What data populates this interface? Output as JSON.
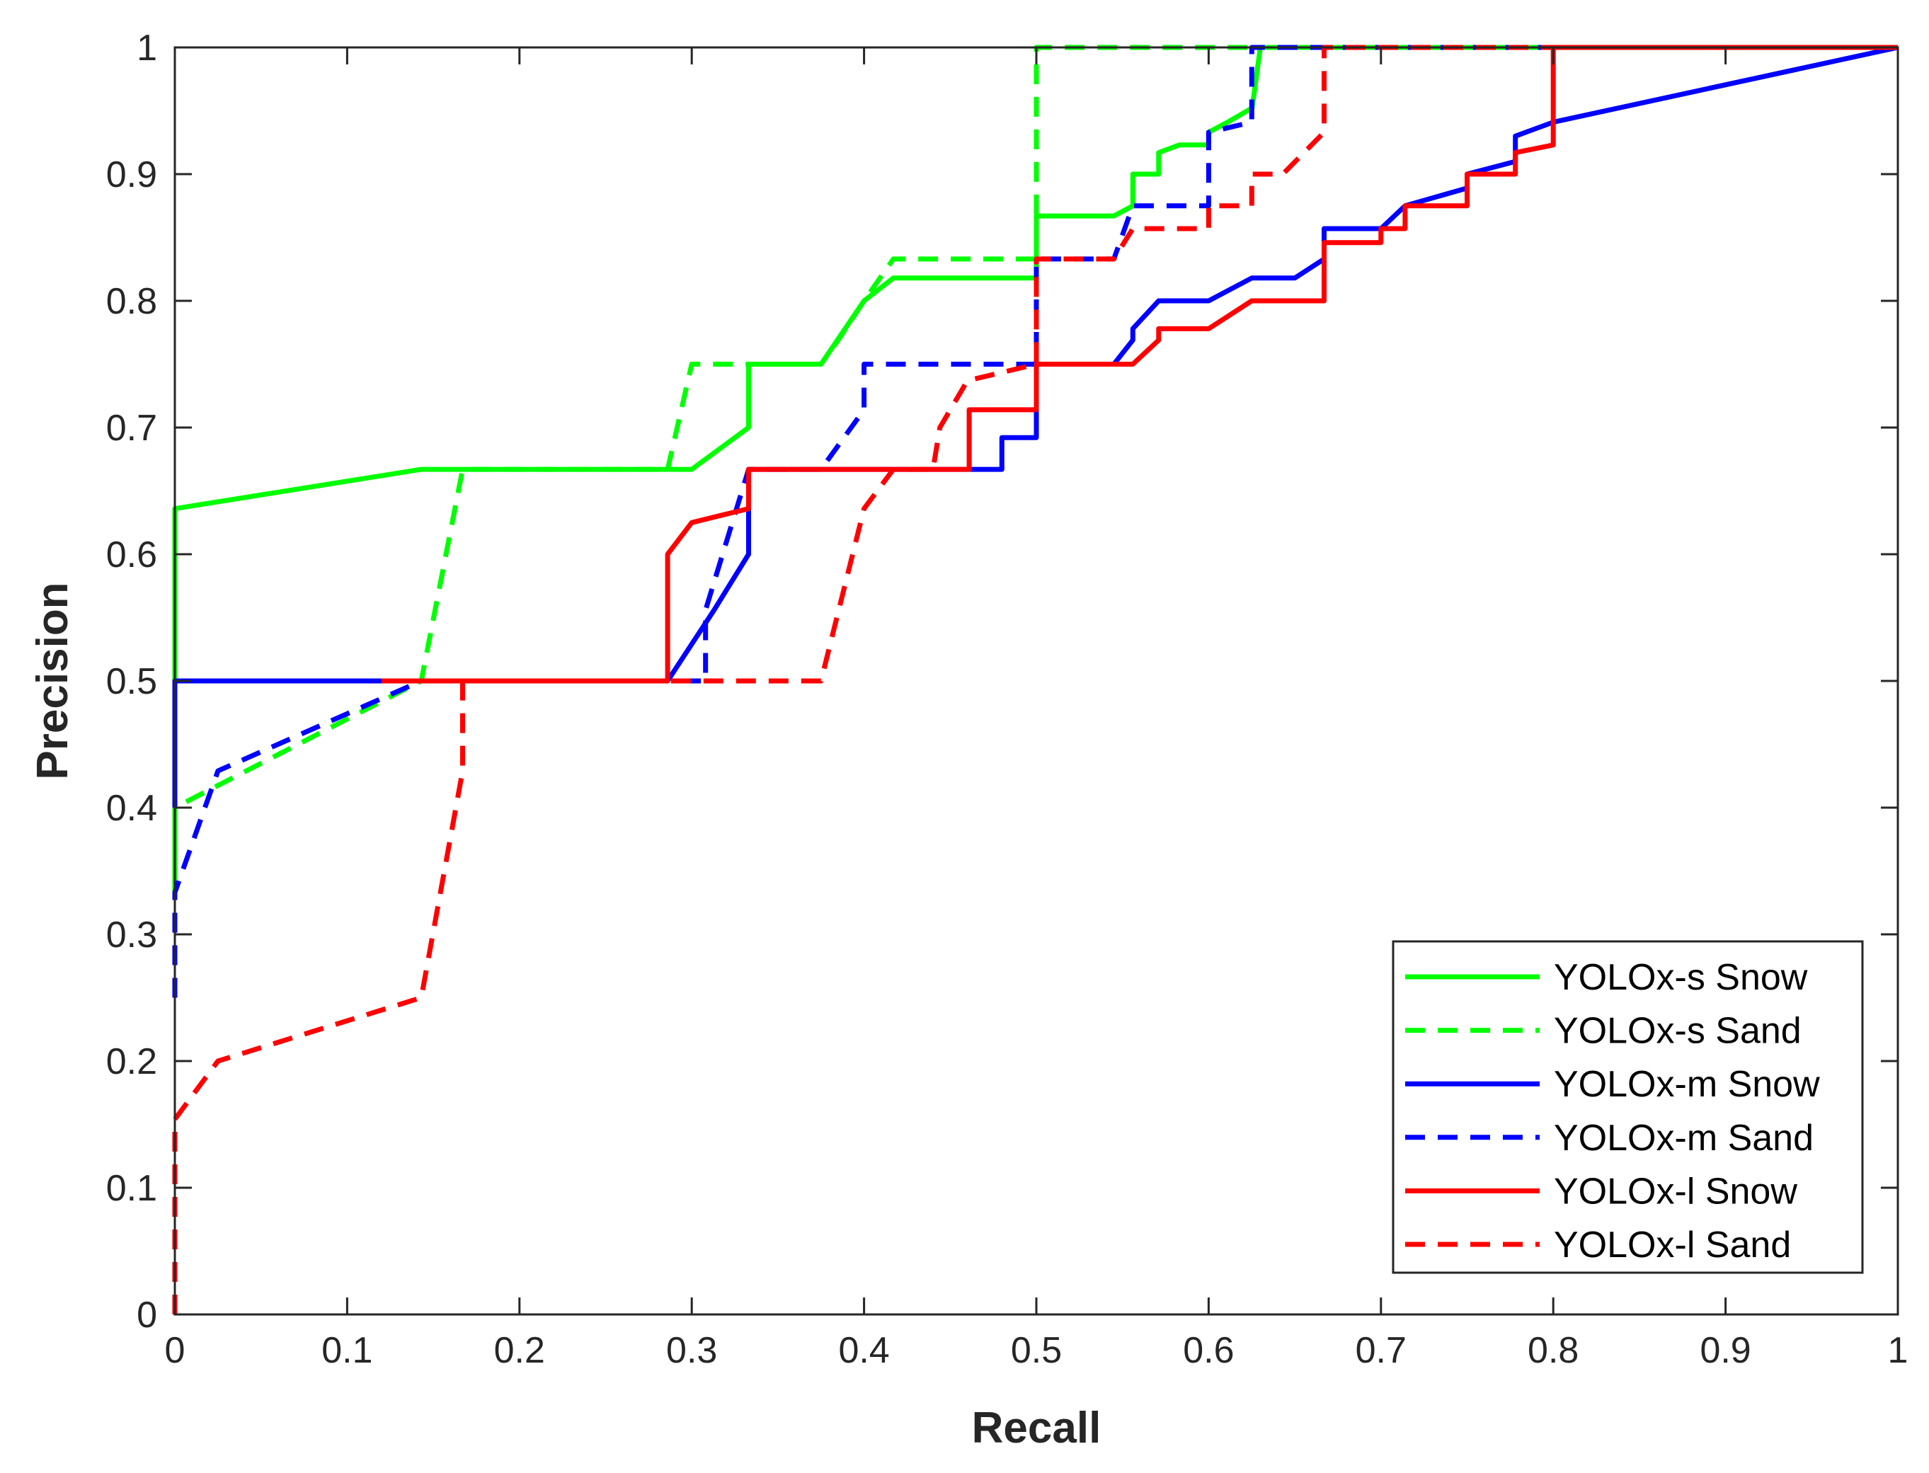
{
  "chart_data": {
    "type": "line",
    "title": "",
    "xlabel": "Recall",
    "ylabel": "Precision",
    "xlim": [
      0,
      1
    ],
    "ylim": [
      0,
      1
    ],
    "xticks": [
      "0",
      "0.1",
      "0.2",
      "0.3",
      "0.4",
      "0.5",
      "0.6",
      "0.7",
      "0.8",
      "0.9",
      "1"
    ],
    "yticks": [
      "0",
      "0.1",
      "0.2",
      "0.3",
      "0.4",
      "0.5",
      "0.6",
      "0.7",
      "0.8",
      "0.9",
      "1"
    ],
    "grid": false,
    "legend_position": "bottom-right",
    "series": [
      {
        "name": "YOLOx-s Snow",
        "color": "#00ff00",
        "style": "solid",
        "x": [
          0,
          0,
          0,
          0.143,
          0.3,
          0.333,
          0.333,
          0.364,
          0.375,
          0.4,
          0.4,
          0.417,
          0.417,
          0.5,
          0.5,
          0.545,
          0.556,
          0.556,
          0.571,
          0.571,
          0.583,
          0.6,
          0.6,
          0.611,
          0.625,
          0.625,
          0.63,
          1
        ],
        "y": [
          0.333,
          0.5,
          0.636,
          0.667,
          0.667,
          0.7,
          0.75,
          0.75,
          0.75,
          0.8,
          0.8,
          0.818,
          0.818,
          0.818,
          0.867,
          0.867,
          0.875,
          0.9,
          0.9,
          0.917,
          0.923,
          0.923,
          0.933,
          0.941,
          0.952,
          0.95,
          1,
          1
        ]
      },
      {
        "name": "YOLOx-s Sand",
        "color": "#00ff00",
        "style": "dashed",
        "x": [
          0,
          0,
          0.143,
          0.167,
          0.167,
          0.286,
          0.3,
          0.375,
          0.385,
          0.4,
          0.417,
          0.5,
          0.5,
          0.5,
          1
        ],
        "y": [
          0.333,
          0.4,
          0.5,
          0.667,
          0.667,
          0.667,
          0.75,
          0.75,
          0.769,
          0.8,
          0.833,
          0.833,
          0.833,
          1,
          1
        ]
      },
      {
        "name": "YOLOx-m Snow",
        "color": "#0000ff",
        "style": "solid",
        "x": [
          0,
          0,
          0.286,
          0.286,
          0.313,
          0.333,
          0.333,
          0.429,
          0.462,
          0.48,
          0.48,
          0.5,
          0.5,
          0.545,
          0.556,
          0.556,
          0.571,
          0.571,
          0.6,
          0.625,
          0.65,
          0.667,
          0.667,
          0.7,
          0.714,
          0.75,
          0.75,
          0.778,
          0.778,
          0.8,
          1
        ],
        "y": [
          0.4,
          0.5,
          0.5,
          0.5,
          0.556,
          0.6,
          0.667,
          0.667,
          0.667,
          0.667,
          0.692,
          0.692,
          0.75,
          0.75,
          0.769,
          0.778,
          0.8,
          0.8,
          0.8,
          0.818,
          0.818,
          0.833,
          0.857,
          0.857,
          0.875,
          0.889,
          0.9,
          0.91,
          0.93,
          0.941,
          1
        ]
      },
      {
        "name": "YOLOx-m Sand",
        "color": "#0000ff",
        "style": "dashed",
        "x": [
          0,
          0,
          0.025,
          0.143,
          0.308,
          0.308,
          0.333,
          0.375,
          0.4,
          0.4,
          0.5,
          0.5,
          0.545,
          0.556,
          0.6,
          0.6,
          0.625,
          0.625,
          0.64,
          1
        ],
        "y": [
          0.25,
          0.333,
          0.429,
          0.5,
          0.5,
          0.556,
          0.667,
          0.667,
          0.714,
          0.75,
          0.75,
          0.833,
          0.833,
          0.875,
          0.875,
          0.933,
          0.941,
          1,
          1,
          1
        ]
      },
      {
        "name": "YOLOx-l Snow",
        "color": "#ff0000",
        "style": "solid",
        "x": [
          0.12,
          0.286,
          0.286,
          0.3,
          0.333,
          0.333,
          0.461,
          0.461,
          0.5,
          0.5,
          0.556,
          0.571,
          0.571,
          0.6,
          0.625,
          0.667,
          0.667,
          0.7,
          0.7,
          0.714,
          0.714,
          0.75,
          0.75,
          0.778,
          0.778,
          0.8,
          0.8,
          1
        ],
        "y": [
          0.5,
          0.5,
          0.6,
          0.625,
          0.636,
          0.667,
          0.667,
          0.714,
          0.714,
          0.75,
          0.75,
          0.769,
          0.778,
          0.778,
          0.8,
          0.8,
          0.846,
          0.846,
          0.857,
          0.857,
          0.875,
          0.875,
          0.9,
          0.9,
          0.917,
          0.923,
          1,
          1
        ]
      },
      {
        "name": "YOLOx-l Sand",
        "color": "#ff0000",
        "style": "dashed",
        "x": [
          0,
          0,
          0.025,
          0.143,
          0.167,
          0.167,
          0.375,
          0.4,
          0.417,
          0.44,
          0.444,
          0.46,
          0.5,
          0.5,
          0.545,
          0.556,
          0.6,
          0.6,
          0.625,
          0.625,
          0.643,
          0.667,
          0.667,
          1
        ],
        "y": [
          0,
          0.154,
          0.2,
          0.25,
          0.429,
          0.5,
          0.5,
          0.636,
          0.667,
          0.667,
          0.7,
          0.737,
          0.75,
          0.833,
          0.833,
          0.857,
          0.857,
          0.875,
          0.875,
          0.9,
          0.9,
          0.933,
          1,
          1
        ]
      }
    ]
  }
}
